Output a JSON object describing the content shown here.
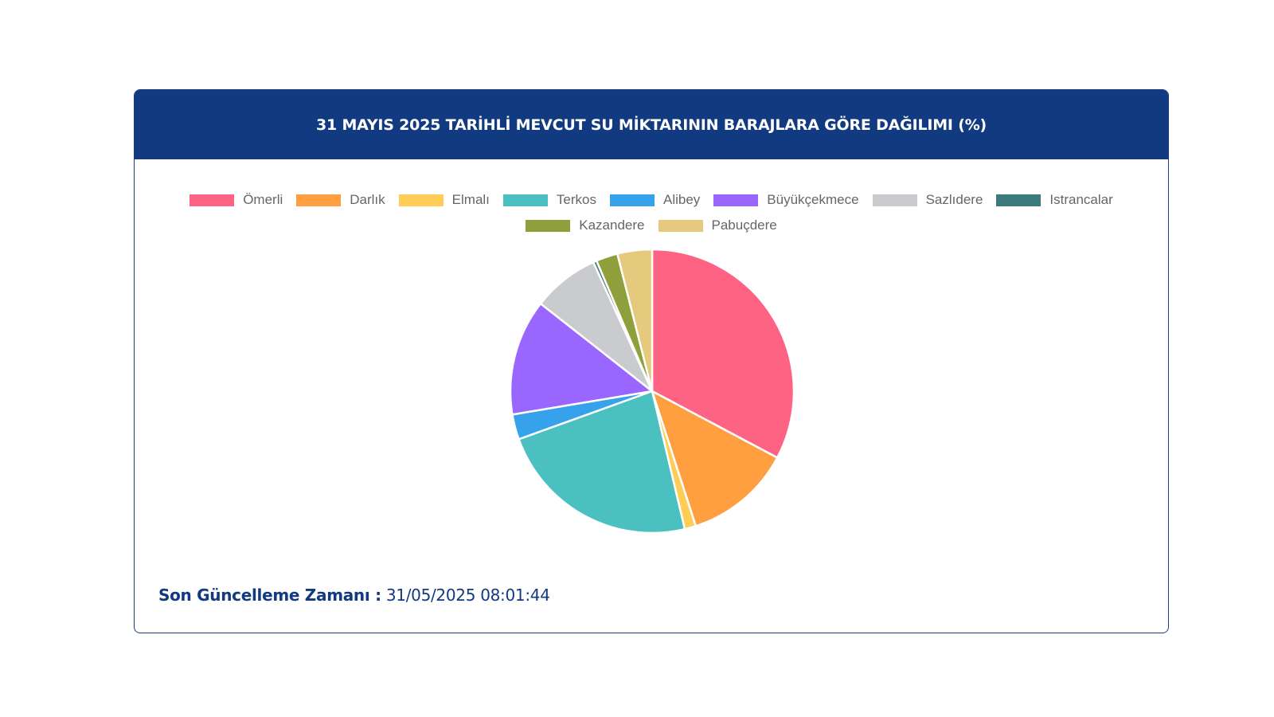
{
  "header": {
    "title": "31 MAYIS 2025 TARİHLİ MEVCUT SU MİKTARININ BARAJLARA GÖRE DAĞILIMI (%)"
  },
  "chart_data": {
    "type": "pie",
    "title": "31 MAYIS 2025 TARİHLİ MEVCUT SU MİKTARININ BARAJLARA GÖRE DAĞILIMI (%)",
    "legend_position": "top",
    "categories": [
      "Ömerli",
      "Darlık",
      "Elmalı",
      "Terkos",
      "Alibey",
      "Büyükçekmece",
      "Sazlıdere",
      "Istrancalar",
      "Kazandere",
      "Pabuçdere"
    ],
    "values": [
      33.2,
      12.4,
      1.3,
      23.5,
      2.9,
      13.4,
      7.7,
      0.4,
      2.5,
      4.0
    ],
    "colors": [
      "#ff6384",
      "#ff9f40",
      "#ffcd56",
      "#4bc0c0",
      "#36a2eb",
      "#9966ff",
      "#c9cbcf",
      "#3b7b7b",
      "#8f9f3b",
      "#e5c97c"
    ]
  },
  "footer": {
    "label": "Son Güncelleme Zamanı :",
    "value": "31/05/2025 08:01:44"
  }
}
